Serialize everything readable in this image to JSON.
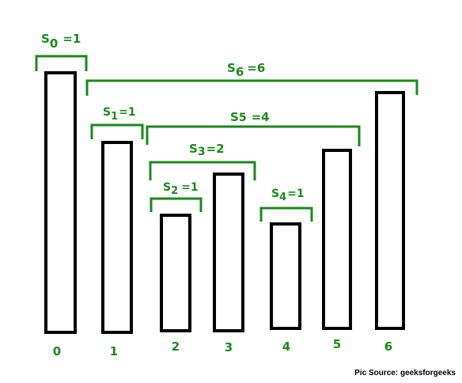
{
  "colors": {
    "accent": "#1a8a1a",
    "bar_stroke": "#000000",
    "source_text": "#000000"
  },
  "bars": [
    {
      "index": "0",
      "height": 9
    },
    {
      "index": "1",
      "height": 7.5
    },
    {
      "index": "2",
      "height": 4
    },
    {
      "index": "3",
      "height": 5.5
    },
    {
      "index": "4",
      "height": 3.6
    },
    {
      "index": "5",
      "height": 6.25
    },
    {
      "index": "6",
      "height": 8.2
    }
  ],
  "spans": [
    {
      "base": "S",
      "sub": "0",
      "value": "=1"
    },
    {
      "base": "S",
      "sub": "1",
      "value": "=1"
    },
    {
      "base": "S",
      "sub": "2",
      "value": "=1"
    },
    {
      "base": "S",
      "sub": "3",
      "value": "=2"
    },
    {
      "base": "S",
      "sub": "4",
      "value": "=1"
    },
    {
      "base": "S",
      "sub": "5",
      "value": "=4"
    },
    {
      "base": "S",
      "sub": "6",
      "value": "=6"
    }
  ],
  "source": "Pic Source: geeksforgeeks"
}
